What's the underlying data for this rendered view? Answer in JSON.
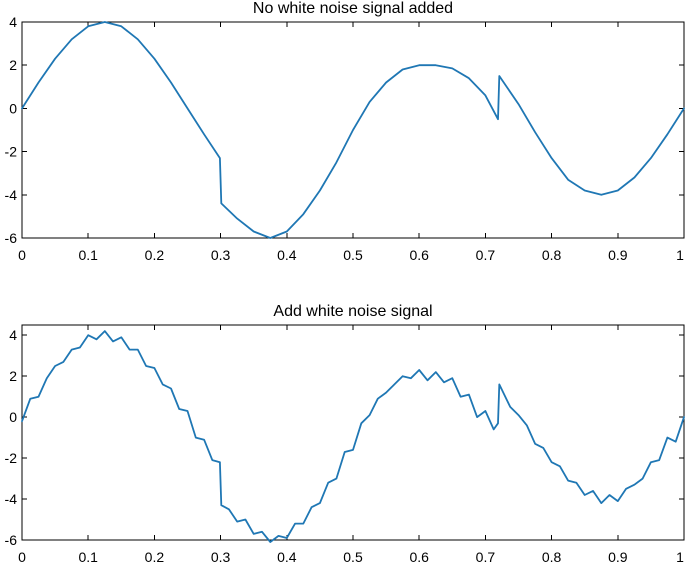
{
  "chart_data": [
    {
      "type": "line",
      "title": "No white noise signal added",
      "xlim": [
        0,
        1
      ],
      "ylim": [
        -6,
        4
      ],
      "xticks": [
        0,
        0.1,
        0.2,
        0.3,
        0.4,
        0.5,
        0.6,
        0.7,
        0.8,
        0.9,
        1
      ],
      "xtick_labels": [
        "0",
        "0.1",
        "0.2",
        "0.3",
        "0.4",
        "0.5",
        "0.6",
        "0.7",
        "0.8",
        "0.9",
        "1"
      ],
      "yticks": [
        -6,
        -4,
        -2,
        0,
        2,
        4
      ],
      "ytick_labels": [
        "-6",
        "-4",
        "-2",
        "0",
        "2",
        "4"
      ],
      "grid": false,
      "series": [
        {
          "color": "#1f77b4",
          "x": [
            0,
            0.025,
            0.05,
            0.075,
            0.1,
            0.125,
            0.15,
            0.175,
            0.2,
            0.225,
            0.25,
            0.275,
            0.299,
            0.301,
            0.325,
            0.35,
            0.375,
            0.4,
            0.425,
            0.45,
            0.475,
            0.5,
            0.525,
            0.55,
            0.575,
            0.6,
            0.625,
            0.65,
            0.675,
            0.7,
            0.719,
            0.721,
            0.75,
            0.775,
            0.8,
            0.825,
            0.85,
            0.875,
            0.9,
            0.925,
            0.95,
            0.975,
            1
          ],
          "y": [
            0,
            1.2,
            2.3,
            3.2,
            3.8,
            4.0,
            3.8,
            3.2,
            2.3,
            1.2,
            0.0,
            -1.2,
            -2.3,
            -4.4,
            -5.1,
            -5.7,
            -6.0,
            -5.7,
            -4.9,
            -3.8,
            -2.5,
            -1.0,
            0.3,
            1.2,
            1.8,
            2.0,
            2.0,
            1.85,
            1.4,
            0.6,
            -0.5,
            1.5,
            0.2,
            -1.1,
            -2.3,
            -3.3,
            -3.8,
            -4.0,
            -3.8,
            -3.2,
            -2.3,
            -1.2,
            0
          ]
        }
      ]
    },
    {
      "type": "line",
      "title": "Add white noise signal",
      "xlim": [
        0,
        1
      ],
      "ylim": [
        -6,
        4.5
      ],
      "xticks": [
        0,
        0.1,
        0.2,
        0.3,
        0.4,
        0.5,
        0.6,
        0.7,
        0.8,
        0.9,
        1
      ],
      "xtick_labels": [
        "0",
        "0.1",
        "0.2",
        "0.3",
        "0.4",
        "0.5",
        "0.6",
        "0.7",
        "0.8",
        "0.9",
        "1"
      ],
      "yticks": [
        -6,
        -4,
        -2,
        0,
        2,
        4
      ],
      "ytick_labels": [
        "-6",
        "-4",
        "-2",
        "0",
        "2",
        "4"
      ],
      "grid": false,
      "series": [
        {
          "color": "#1f77b4",
          "x": [
            0,
            0.0125,
            0.025,
            0.0375,
            0.05,
            0.0625,
            0.075,
            0.0875,
            0.1,
            0.1125,
            0.125,
            0.1375,
            0.15,
            0.1625,
            0.175,
            0.1875,
            0.2,
            0.2125,
            0.225,
            0.2375,
            0.25,
            0.2625,
            0.275,
            0.2875,
            0.299,
            0.301,
            0.3125,
            0.325,
            0.3375,
            0.35,
            0.3625,
            0.375,
            0.3875,
            0.4,
            0.4125,
            0.425,
            0.4375,
            0.45,
            0.4625,
            0.475,
            0.4875,
            0.5,
            0.5125,
            0.525,
            0.5375,
            0.55,
            0.5625,
            0.575,
            0.5875,
            0.6,
            0.6125,
            0.625,
            0.6375,
            0.65,
            0.6625,
            0.675,
            0.6875,
            0.7,
            0.7125,
            0.719,
            0.721,
            0.7375,
            0.75,
            0.7625,
            0.775,
            0.7875,
            0.8,
            0.8125,
            0.825,
            0.8375,
            0.85,
            0.8625,
            0.875,
            0.8875,
            0.9,
            0.9125,
            0.925,
            0.9375,
            0.95,
            0.9625,
            0.975,
            0.9875,
            1
          ],
          "y": [
            -0.2,
            0.9,
            1.0,
            1.9,
            2.5,
            2.7,
            3.3,
            3.4,
            4.0,
            3.8,
            4.2,
            3.7,
            3.9,
            3.3,
            3.3,
            2.5,
            2.4,
            1.6,
            1.4,
            0.4,
            0.3,
            -1.0,
            -1.1,
            -2.1,
            -2.2,
            -4.3,
            -4.5,
            -5.1,
            -5.0,
            -5.7,
            -5.6,
            -6.1,
            -5.8,
            -5.9,
            -5.2,
            -5.2,
            -4.4,
            -4.2,
            -3.2,
            -3.0,
            -1.7,
            -1.6,
            -0.3,
            0.1,
            0.9,
            1.2,
            1.6,
            2.0,
            1.9,
            2.3,
            1.8,
            2.2,
            1.7,
            1.9,
            1.0,
            1.1,
            0.0,
            0.3,
            -0.6,
            -0.3,
            1.6,
            0.5,
            0.1,
            -0.4,
            -1.3,
            -1.5,
            -2.2,
            -2.4,
            -3.1,
            -3.2,
            -3.8,
            -3.6,
            -4.2,
            -3.8,
            -4.1,
            -3.5,
            -3.3,
            -3.0,
            -2.2,
            -2.1,
            -1.0,
            -1.2,
            0.0
          ]
        }
      ]
    }
  ]
}
